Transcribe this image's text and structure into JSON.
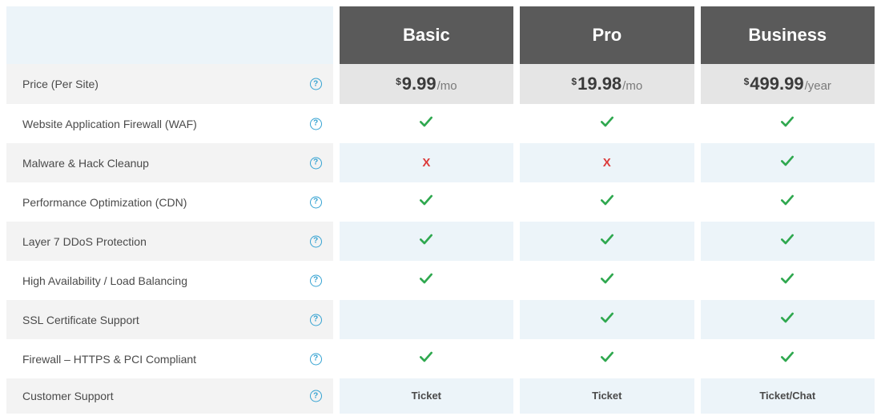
{
  "plans": [
    {
      "name": "Basic",
      "currency": "$",
      "amount": "9.99",
      "period": "/mo"
    },
    {
      "name": "Pro",
      "currency": "$",
      "amount": "19.98",
      "period": "/mo"
    },
    {
      "name": "Business",
      "currency": "$",
      "amount": "499.99",
      "period": "/year"
    }
  ],
  "price_label": "Price (Per Site)",
  "help_glyph": "?",
  "colors": {
    "plan_header_bg": "#5a5a5a",
    "feature_header_bg": "#ecf4f9",
    "row_even_feature": "#f3f3f3",
    "row_even_value": "#ecf4f9",
    "price_value_bg": "#e5e5e5",
    "check": "#2fa84f",
    "x": "#dc3b3b",
    "help_border": "#34a2d2"
  },
  "features": [
    {
      "label": "Website Application Firewall (WAF)",
      "values": [
        "check",
        "check",
        "check"
      ]
    },
    {
      "label": "Malware & Hack Cleanup",
      "values": [
        "x",
        "x",
        "check"
      ]
    },
    {
      "label": "Performance Optimization (CDN)",
      "values": [
        "check",
        "check",
        "check"
      ]
    },
    {
      "label": "Layer 7 DDoS Protection",
      "values": [
        "check",
        "check",
        "check"
      ]
    },
    {
      "label": "High Availability / Load Balancing",
      "values": [
        "check",
        "check",
        "check"
      ]
    },
    {
      "label": "SSL Certificate Support",
      "values": [
        "",
        "check",
        "check"
      ]
    },
    {
      "label": "Firewall – HTTPS & PCI Compliant",
      "values": [
        "check",
        "check",
        "check"
      ]
    },
    {
      "label": "Customer Support",
      "values": [
        "Ticket",
        "Ticket",
        "Ticket/Chat"
      ]
    }
  ]
}
